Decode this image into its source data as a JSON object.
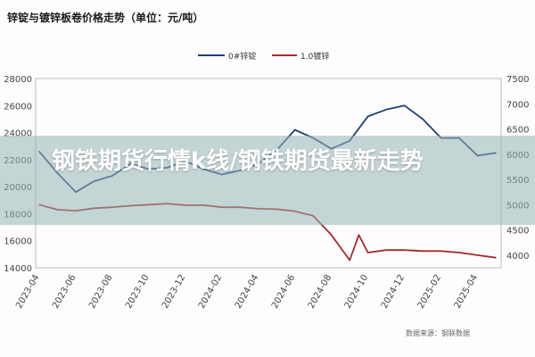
{
  "chart_data": {
    "type": "line",
    "title": "锌锭与镀锌板卷价格走势（单位：元/吨）",
    "x_ticks": [
      "2023-04",
      "2023-06",
      "2023-08",
      "2023-10",
      "2023-12",
      "2024-02",
      "2024-04",
      "2024-06",
      "2024-08",
      "2024-10",
      "2024-12",
      "2025-02",
      "2025-04"
    ],
    "left_axis": {
      "ticks": [
        14000,
        16000,
        18000,
        20000,
        22000,
        24000,
        26000,
        28000
      ],
      "ylim": [
        14000,
        28000
      ]
    },
    "right_axis": {
      "ticks": [
        4000,
        4500,
        5000,
        5500,
        6000,
        6500,
        7000,
        7500
      ],
      "ylim": [
        3750,
        7500
      ]
    },
    "series": [
      {
        "name": "0#锌锭",
        "axis": "left",
        "color": "#1f3f7a",
        "x": [
          "2023-04",
          "2023-05",
          "2023-06",
          "2023-07",
          "2023-08",
          "2023-09",
          "2023-10",
          "2023-11",
          "2023-12",
          "2024-01",
          "2024-02",
          "2024-03",
          "2024-04",
          "2024-05",
          "2024-06",
          "2024-07",
          "2024-08",
          "2024-09",
          "2024-10",
          "2024-11",
          "2024-12",
          "2025-01",
          "2025-02",
          "2025-03",
          "2025-04",
          "2025-05"
        ],
        "values": [
          22600,
          21000,
          19600,
          20400,
          20800,
          21700,
          21300,
          21400,
          21900,
          21300,
          20900,
          21200,
          21700,
          22700,
          24200,
          23600,
          22800,
          23400,
          25200,
          25700,
          26000,
          25000,
          23600,
          23600,
          22300,
          22500
        ]
      },
      {
        "name": "1.0镀锌",
        "axis": "right",
        "color": "#a52a2a",
        "x": [
          "2023-04",
          "2023-05",
          "2023-06",
          "2023-07",
          "2023-08",
          "2023-09",
          "2023-10",
          "2023-11",
          "2023-12",
          "2024-01",
          "2024-02",
          "2024-03",
          "2024-04",
          "2024-05",
          "2024-06",
          "2024-07",
          "2024-08",
          "2024-08b",
          "2024-09",
          "2024-09b",
          "2024-10",
          "2024-11",
          "2024-12",
          "2025-01",
          "2025-02",
          "2025-03",
          "2025-04",
          "2025-05"
        ],
        "values": [
          5000,
          4900,
          4880,
          4930,
          4950,
          4980,
          5000,
          5020,
          4990,
          4990,
          4950,
          4950,
          4920,
          4910,
          4870,
          4780,
          4400,
          4150,
          3900,
          4400,
          4050,
          4100,
          4100,
          4080,
          4080,
          4050,
          4000,
          3950
        ]
      }
    ],
    "source": "数据来源：钢联数据"
  },
  "overlay": {
    "headline": "钢铁期货行情k线/钢铁期货最新走势"
  }
}
